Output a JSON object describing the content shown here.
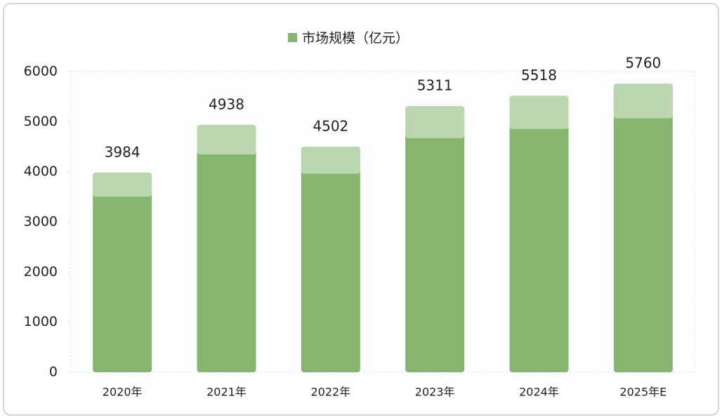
{
  "chart_data": {
    "type": "bar",
    "categories": [
      "2020年",
      "2021年",
      "2022年",
      "2023年",
      "2024年",
      "2025年E"
    ],
    "series": [
      {
        "name": "市场规模（亿元）",
        "color": "#86b56f",
        "values": [
          3984,
          4938,
          4502,
          5311,
          5518,
          5760
        ]
      }
    ],
    "ylim": [
      0,
      6000
    ],
    "yticks": [
      0,
      1000,
      2000,
      3000,
      4000,
      5000,
      6000
    ],
    "data_labels": true
  }
}
